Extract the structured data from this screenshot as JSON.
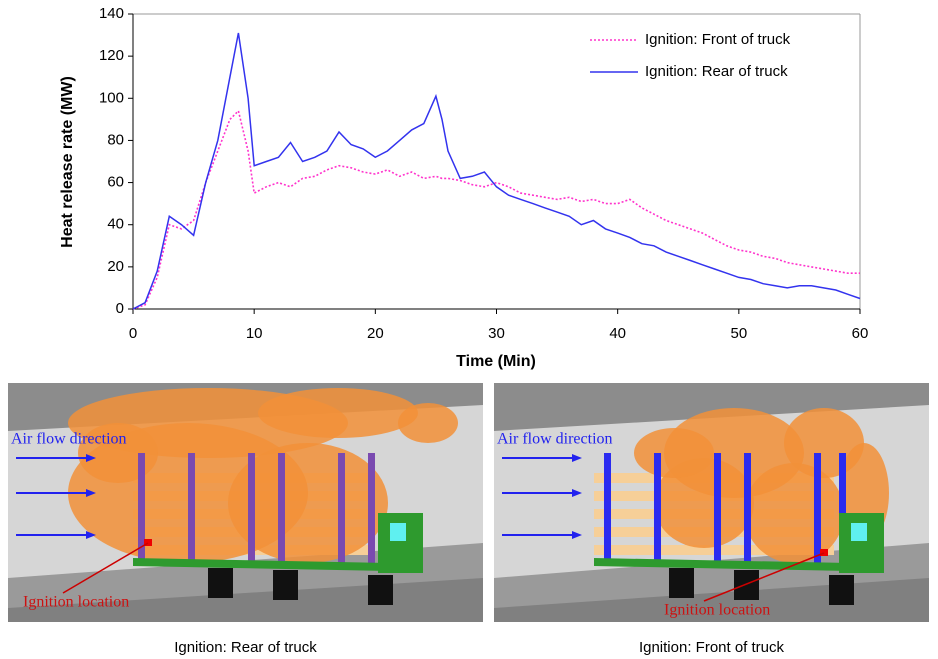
{
  "chart_data": {
    "type": "line",
    "xlabel": "Time (Min)",
    "ylabel": "Heat release rate (MW)",
    "x": [
      0,
      1,
      2,
      3,
      4,
      5,
      6,
      7,
      8,
      8.7,
      9.5,
      10,
      11,
      12,
      13,
      14,
      15,
      16,
      17,
      18,
      19,
      20,
      21,
      22,
      23,
      24,
      25,
      25.5,
      26,
      27,
      28,
      29,
      30,
      31,
      32,
      33,
      34,
      35,
      36,
      37,
      38,
      39,
      40,
      41,
      42,
      43,
      44,
      45,
      46,
      47,
      48,
      49,
      50,
      51,
      52,
      53,
      54,
      55,
      56,
      57,
      58,
      59,
      60
    ],
    "series": [
      {
        "name": "Ignition: Front of truck",
        "color": "#ff33cc",
        "line_style": "dotted",
        "values": [
          0,
          2,
          15,
          40,
          38,
          42,
          60,
          75,
          90,
          94,
          75,
          55,
          58,
          60,
          58,
          62,
          63,
          66,
          68,
          67,
          65,
          64,
          66,
          63,
          65,
          62,
          63,
          62,
          62,
          61,
          59,
          58,
          60,
          58,
          55,
          54,
          53,
          52,
          53,
          51,
          52,
          50,
          50,
          52,
          48,
          45,
          42,
          40,
          38,
          36,
          33,
          30,
          28,
          27,
          25,
          24,
          22,
          21,
          20,
          19,
          18,
          17,
          17
        ]
      },
      {
        "name": "Ignition: Rear of truck",
        "color": "#3333ee",
        "line_style": "solid",
        "values": [
          0,
          3,
          18,
          44,
          40,
          35,
          60,
          80,
          110,
          131,
          100,
          68,
          70,
          72,
          79,
          70,
          72,
          75,
          84,
          78,
          76,
          72,
          75,
          80,
          85,
          88,
          101,
          90,
          75,
          62,
          63,
          65,
          58,
          54,
          52,
          50,
          48,
          46,
          44,
          40,
          42,
          38,
          36,
          34,
          31,
          30,
          27,
          25,
          23,
          21,
          19,
          17,
          15,
          14,
          12,
          11,
          10,
          11,
          11,
          10,
          9,
          7,
          5
        ]
      }
    ],
    "xlim": [
      0,
      60
    ],
    "xticks": [
      0,
      10,
      20,
      30,
      40,
      50,
      60
    ],
    "ylim": [
      0,
      140
    ],
    "yticks": [
      0,
      20,
      40,
      60,
      80,
      100,
      120,
      140
    ],
    "grid": false,
    "legend": "upper right"
  },
  "panels": [
    {
      "caption": "Ignition: Rear of truck",
      "airflow_label": "Air flow direction",
      "ignition_label": "Ignition location"
    },
    {
      "caption": "Ignition: Front of truck",
      "airflow_label": "Air flow direction",
      "ignition_label": "Ignition location"
    }
  ]
}
